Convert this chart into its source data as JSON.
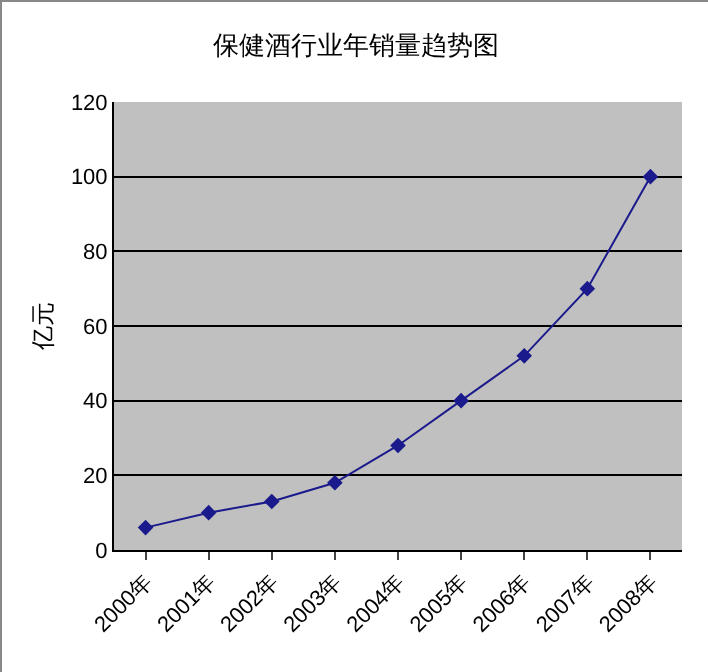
{
  "chart_data": {
    "type": "line",
    "title": "保健酒行业年销量趋势图",
    "ylabel": "亿元",
    "categories": [
      "2000年",
      "2001年",
      "2002年",
      "2003年",
      "2004年",
      "2005年",
      "2006年",
      "2007年",
      "2008年"
    ],
    "series": [
      {
        "color": "#1a1a8c",
        "values": [
          6,
          10,
          13,
          18,
          28,
          40,
          52,
          70,
          100
        ]
      }
    ],
    "ylim": [
      0,
      120
    ],
    "yticks": [
      0,
      20,
      40,
      60,
      80,
      100,
      120
    ],
    "grid": "y",
    "marker": "diamond",
    "line_style": "solid"
  }
}
